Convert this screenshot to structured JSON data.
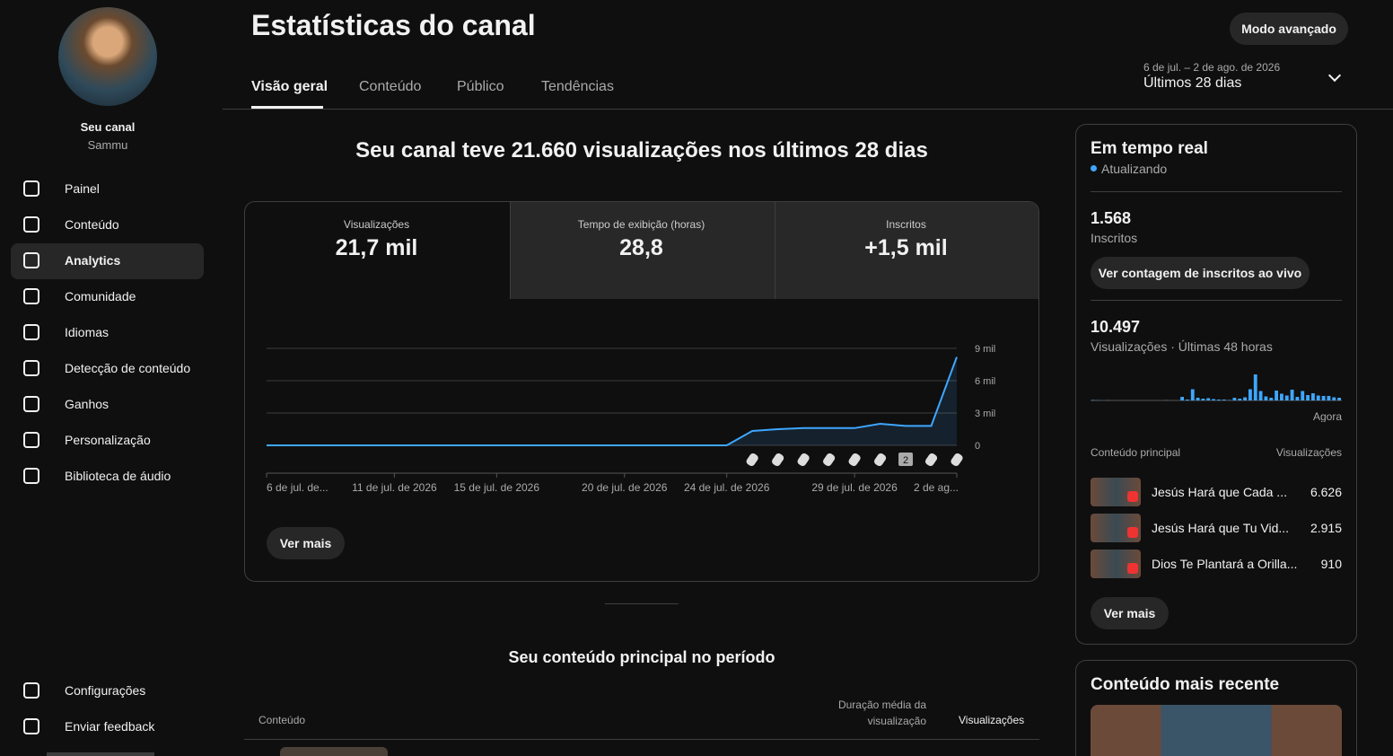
{
  "sidebar": {
    "channel_label": "Seu canal",
    "channel_name": "Sammu",
    "nav": [
      "Painel",
      "Conteúdo",
      "Analytics",
      "Comunidade",
      "Idiomas",
      "Detecção de conteúdo",
      "Ganhos",
      "Personalização",
      "Biblioteca de áudio"
    ],
    "active": 2,
    "bottom": [
      "Configurações",
      "Enviar feedback"
    ]
  },
  "header": {
    "title": "Estatísticas do canal",
    "advanced_button": "Modo avançado",
    "tabs": [
      "Visão geral",
      "Conteúdo",
      "Público",
      "Tendências"
    ],
    "date_range": "6 de jul. – 2 de ago. de 2026",
    "period": "Últimos 28 dias"
  },
  "summary": "Seu canal teve 21.660 visualizações nos últimos 28 dias",
  "metrics": [
    {
      "label": "Visualizações",
      "value": "21,7 mil"
    },
    {
      "label": "Tempo de exibição (horas)",
      "value": "28,8"
    },
    {
      "label": "Inscritos",
      "value": "+1,5 mil"
    }
  ],
  "chart_data": [
    {
      "type": "line",
      "categories": [
        "6 de jul. de...",
        null,
        null,
        null,
        null,
        "11 de jul. de 2026",
        null,
        null,
        null,
        "15 de jul. de 2026",
        null,
        null,
        null,
        null,
        "20 de jul. de 2026",
        null,
        null,
        null,
        "24 de jul. de 2026",
        null,
        null,
        null,
        null,
        "29 de jul. de 2026",
        null,
        null,
        null,
        "2 de ag..."
      ],
      "values": [
        0,
        0,
        0,
        0,
        0,
        0,
        0,
        0,
        0,
        0,
        0,
        0,
        0,
        0,
        0,
        0,
        0,
        0,
        0,
        1330,
        1500,
        1600,
        1600,
        1600,
        2000,
        1800,
        1800,
        8200
      ],
      "color": "#3ea6ff",
      "ylim": [
        0,
        9000
      ],
      "yticks": [
        0,
        {
          "value": 3000,
          "label": "3 mil"
        },
        {
          "value": 6000,
          "label": "6 mil"
        },
        {
          "value": 9000,
          "label": "9 mil"
        }
      ],
      "grid": true,
      "annotation": "2"
    },
    {
      "type": "bar",
      "values": [
        10,
        5,
        0,
        5,
        0,
        0,
        0,
        0,
        0,
        0,
        0,
        0,
        0,
        0,
        5,
        0,
        0,
        80,
        20,
        250,
        60,
        40,
        50,
        30,
        20,
        20,
        10,
        60,
        40,
        70,
        250,
        580,
        210,
        90,
        60,
        220,
        150,
        110,
        240,
        80,
        210,
        120,
        160,
        110,
        100,
        100,
        70,
        60
      ],
      "color": "#3ea6ff",
      "ylim": [
        0,
        600
      ],
      "x_end_label": "Agora"
    }
  ],
  "see_more": "Ver mais",
  "top_content": {
    "title": "Seu conteúdo principal no período",
    "columns": [
      "Conteúdo",
      "Duração média da visualização",
      "Visualizações"
    ]
  },
  "realtime": {
    "title": "Em tempo real",
    "status": "Atualizando",
    "subscribers": "1.568",
    "subscribers_label": "Inscritos",
    "live_button": "Ver contagem de inscritos ao vivo",
    "views": "10.497",
    "views_label": "Visualizações · Últimas 48 horas",
    "columns": [
      "Conteúdo principal",
      "Visualizações"
    ],
    "rows": [
      {
        "title": "Jesús Hará que Cada ...",
        "views": "6.626"
      },
      {
        "title": "Jesús Hará que Tu Vid...",
        "views": "2.915"
      },
      {
        "title": "Dios Te Plantará a Orilla...",
        "views": "910"
      }
    ],
    "see_more": "Ver mais"
  },
  "latest": {
    "title": "Conteúdo mais recente"
  }
}
